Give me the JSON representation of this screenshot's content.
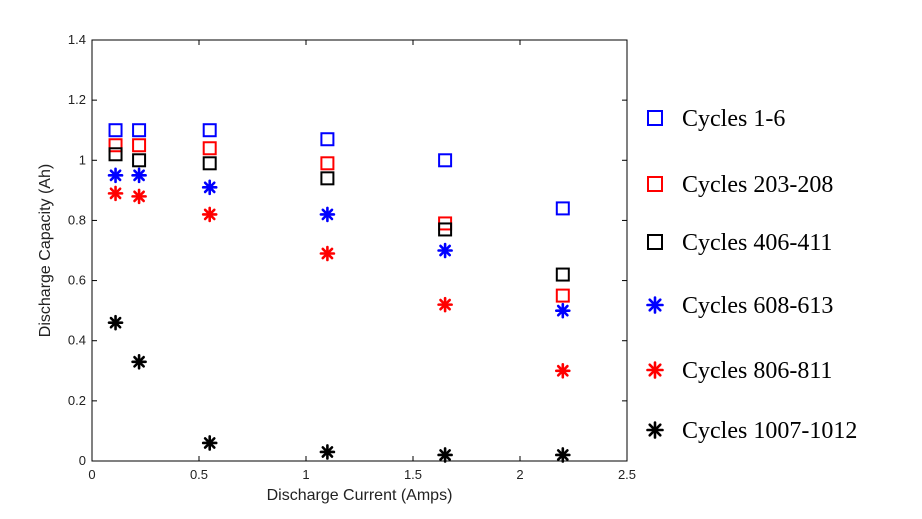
{
  "chart_data": {
    "type": "scatter",
    "title": "",
    "xlabel": "Discharge Current (Amps)",
    "ylabel": "Discharge Capacity (Ah)",
    "xlim": [
      0,
      2.5
    ],
    "ylim": [
      0,
      1.4
    ],
    "xticks": [
      0,
      0.5,
      1,
      1.5,
      2,
      2.5
    ],
    "xtick_labels": [
      "0",
      "0.5",
      "1",
      "1.5",
      "2",
      "2.5"
    ],
    "yticks": [
      0,
      0.2,
      0.4,
      0.6,
      0.8,
      1.0,
      1.2,
      1.4
    ],
    "ytick_labels": [
      "0",
      "0.2",
      "0.4",
      "0.6",
      "0.8",
      "1",
      "1.2",
      "1.4"
    ],
    "grid": false,
    "legend_position": "right",
    "x": [
      0.11,
      0.22,
      0.55,
      1.1,
      1.65,
      2.2
    ],
    "series": [
      {
        "name": "Cycles 1-6",
        "marker": "square",
        "color": "#0000ff",
        "values": [
          1.1,
          1.1,
          1.1,
          1.07,
          1.0,
          0.84
        ]
      },
      {
        "name": "Cycles 203-208",
        "marker": "square",
        "color": "#ff0000",
        "values": [
          1.05,
          1.05,
          1.04,
          0.99,
          0.79,
          0.55
        ]
      },
      {
        "name": "Cycles 406-411",
        "marker": "square",
        "color": "#000000",
        "values": [
          1.02,
          1.0,
          0.99,
          0.94,
          0.77,
          0.62
        ]
      },
      {
        "name": "Cycles 608-613",
        "marker": "asterisk",
        "color": "#0000ff",
        "values": [
          0.95,
          0.95,
          0.91,
          0.82,
          0.7,
          0.5
        ]
      },
      {
        "name": "Cycles 806-811",
        "marker": "asterisk",
        "color": "#ff0000",
        "values": [
          0.89,
          0.88,
          0.82,
          0.69,
          0.52,
          0.3
        ]
      },
      {
        "name": "Cycles 1007-1012",
        "marker": "asterisk",
        "color": "#000000",
        "values": [
          0.46,
          0.33,
          0.06,
          0.03,
          0.02,
          0.02
        ]
      }
    ]
  }
}
